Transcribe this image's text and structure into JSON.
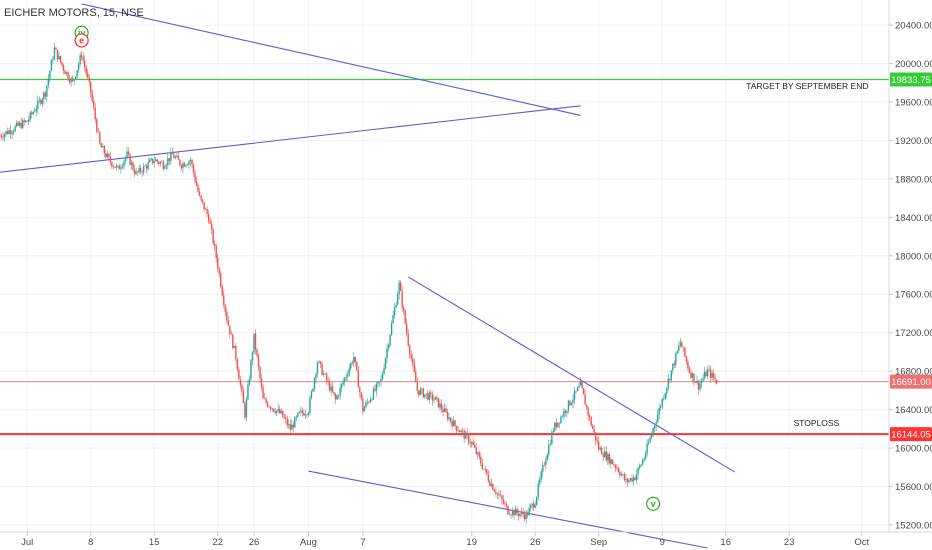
{
  "chart_data": {
    "type": "candlestick",
    "title": "EICHER MOTORS, 15, NSE",
    "colors": {
      "up": "#26a69a",
      "down": "#ef5350",
      "trend": "#5b5bd6",
      "target": "#33cc33",
      "level": "#ff3333"
    },
    "y_range": [
      14960,
      20640
    ],
    "y_ticks": [
      20400,
      20000,
      19600,
      19200,
      18800,
      18400,
      18000,
      17600,
      17200,
      16800,
      16400,
      16000,
      15600,
      15200
    ],
    "x_range": [
      "2019-06-28",
      "2019-10-04"
    ],
    "x_ticks": [
      {
        "label": "Jul",
        "date": "2019-07-01"
      },
      {
        "label": "8",
        "date": "2019-07-08"
      },
      {
        "label": "15",
        "date": "2019-07-15"
      },
      {
        "label": "22",
        "date": "2019-07-22"
      },
      {
        "label": "26",
        "date": "2019-07-26"
      },
      {
        "label": "Aug",
        "date": "2019-08-01"
      },
      {
        "label": "7",
        "date": "2019-08-07"
      },
      {
        "label": "19",
        "date": "2019-08-19"
      },
      {
        "label": "26",
        "date": "2019-08-26"
      },
      {
        "label": "Sep",
        "date": "2019-09-02"
      },
      {
        "label": "9",
        "date": "2019-09-09"
      },
      {
        "label": "16",
        "date": "2019-09-16"
      },
      {
        "label": "23",
        "date": "2019-09-23"
      },
      {
        "label": "Oct",
        "date": "2019-10-01"
      }
    ],
    "price_path": [
      [
        "2019-06-28",
        19250
      ],
      [
        "2019-07-01",
        19400
      ],
      [
        "2019-07-02",
        19550
      ],
      [
        "2019-07-03",
        19700
      ],
      [
        "2019-07-04",
        20150
      ],
      [
        "2019-07-05",
        19950
      ],
      [
        "2019-07-06",
        19800
      ],
      [
        "2019-07-07",
        20100
      ],
      [
        "2019-07-08",
        19700
      ],
      [
        "2019-07-09",
        19150
      ],
      [
        "2019-07-10",
        19000
      ],
      [
        "2019-07-11",
        18900
      ],
      [
        "2019-07-12",
        19050
      ],
      [
        "2019-07-13",
        18850
      ],
      [
        "2019-07-15",
        19000
      ],
      [
        "2019-07-16",
        18950
      ],
      [
        "2019-07-17",
        19050
      ],
      [
        "2019-07-18",
        18950
      ],
      [
        "2019-07-19",
        19000
      ],
      [
        "2019-07-20",
        18600
      ],
      [
        "2019-07-21",
        18400
      ],
      [
        "2019-07-22",
        17900
      ],
      [
        "2019-07-23",
        17350
      ],
      [
        "2019-07-24",
        16950
      ],
      [
        "2019-07-25",
        16350
      ],
      [
        "2019-07-26",
        17150
      ],
      [
        "2019-07-27",
        16500
      ],
      [
        "2019-07-29",
        16350
      ],
      [
        "2019-07-30",
        16200
      ],
      [
        "2019-07-31",
        16350
      ],
      [
        "2019-08-01",
        16400
      ],
      [
        "2019-08-02",
        16900
      ],
      [
        "2019-08-04",
        16500
      ],
      [
        "2019-08-06",
        16950
      ],
      [
        "2019-08-07",
        16400
      ],
      [
        "2019-08-09",
        16700
      ],
      [
        "2019-08-11",
        17700
      ],
      [
        "2019-08-12",
        17100
      ],
      [
        "2019-08-13",
        16600
      ],
      [
        "2019-08-15",
        16500
      ],
      [
        "2019-08-17",
        16250
      ],
      [
        "2019-08-19",
        16050
      ],
      [
        "2019-08-21",
        15650
      ],
      [
        "2019-08-23",
        15350
      ],
      [
        "2019-08-25",
        15300
      ],
      [
        "2019-08-26",
        15450
      ],
      [
        "2019-08-27",
        15850
      ],
      [
        "2019-08-28",
        16200
      ],
      [
        "2019-08-30",
        16500
      ],
      [
        "2019-08-31",
        16650
      ],
      [
        "2019-09-01",
        16300
      ],
      [
        "2019-09-02",
        16000
      ],
      [
        "2019-09-04",
        15800
      ],
      [
        "2019-09-05",
        15650
      ],
      [
        "2019-09-06",
        15700
      ],
      [
        "2019-09-07",
        15900
      ],
      [
        "2019-09-08",
        16200
      ],
      [
        "2019-09-10",
        16800
      ],
      [
        "2019-09-11",
        17100
      ],
      [
        "2019-09-12",
        16800
      ],
      [
        "2019-09-13",
        16650
      ],
      [
        "2019-09-14",
        16800
      ],
      [
        "2019-09-15",
        16691
      ]
    ],
    "trendlines": [
      {
        "from": [
          "2019-07-07",
          20620
        ],
        "to": [
          "2019-08-31",
          19460
        ]
      },
      {
        "from": [
          "2019-06-28",
          18870
        ],
        "to": [
          "2019-08-31",
          19560
        ]
      },
      {
        "from": [
          "2019-08-12",
          17780
        ],
        "to": [
          "2019-09-17",
          15750
        ]
      },
      {
        "from": [
          "2019-08-01",
          15760
        ],
        "to": [
          "2019-09-14",
          14960
        ]
      }
    ],
    "levels": [
      {
        "price": 19833.75,
        "label": "19833.75",
        "role": "target"
      },
      {
        "price": 16691.0,
        "label": "16691.00",
        "role": "last"
      },
      {
        "price": 16144.05,
        "label": "16144.05",
        "role": "stoploss"
      }
    ],
    "annotations": [
      {
        "text": "TARGET BY SEPTEMBER END",
        "date": "2019-09-25",
        "price": 19735,
        "side": "below-target"
      },
      {
        "text": "STOPLOSS",
        "date": "2019-09-26",
        "price": 16230,
        "side": "above-stoploss"
      }
    ],
    "wave_labels": [
      {
        "text": "iv",
        "date": "2019-07-07",
        "price": 20320,
        "color": "#33aa33"
      },
      {
        "text": "e",
        "date": "2019-07-07",
        "price": 20240,
        "color": "#e53935"
      },
      {
        "text": "v",
        "date": "2019-09-08",
        "price": 15420,
        "color": "#33aa33"
      }
    ]
  }
}
